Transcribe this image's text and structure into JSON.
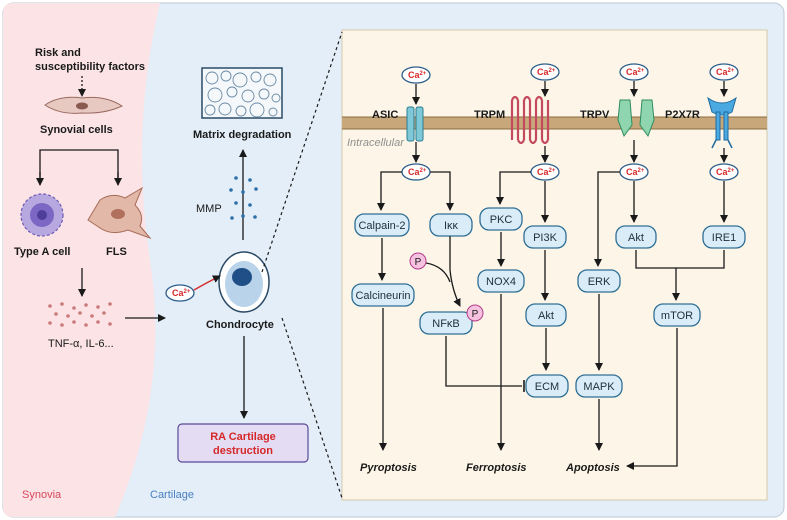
{
  "regions": {
    "synovia": "Synovia",
    "cartilage": "Cartilage",
    "intracellular": "Intracellular"
  },
  "synovia": {
    "risk": [
      "Risk and",
      "susceptibility factors"
    ],
    "synovial_cells": "Synovial cells",
    "type_a": "Type A cell",
    "fls": "FLS",
    "cytokines": "TNF-α, IL-6..."
  },
  "cartilage": {
    "matrix": "Matrix degradation",
    "mmp": "MMP",
    "chondrocyte": "Chondrocyte",
    "destruction": [
      "RA Cartilage",
      "destruction"
    ]
  },
  "ca_label": {
    "base": "Ca",
    "sup": "2+"
  },
  "channels": {
    "asic": "ASIC",
    "trpm": "TRPM",
    "trpv": "TRPV",
    "p2x7r": "P2X7R"
  },
  "nodes": {
    "calpain": "Calpain-2",
    "calcineurin": "Calcineurin",
    "ikk": "Iκκ",
    "nfkb": "NFκB",
    "pkc": "PKC",
    "nox4": "NOX4",
    "pi3k": "PI3K",
    "akt_trpm": "Akt",
    "ecm": "ECM",
    "erk": "ERK",
    "mapk": "MAPK",
    "akt_trpv": "Akt",
    "ire1": "IRE1",
    "mtor": "mTOR"
  },
  "phospho": "P",
  "outcomes": {
    "pyroptosis": "Pyroptosis",
    "ferroptosis": "Ferroptosis",
    "apoptosis": "Apoptosis"
  },
  "colors": {
    "synovia_bg": "#fbe3e6",
    "cartilage_bg": "#e3eef8",
    "panel_bg": "#fdf6e8",
    "membrane": "#c8a87a",
    "node_fill": "#d9ecf7",
    "node_stroke": "#2f6f95",
    "ca_red": "#d62828",
    "destruction_fill": "#e3dcf3",
    "destruction_text": "#d62828"
  }
}
